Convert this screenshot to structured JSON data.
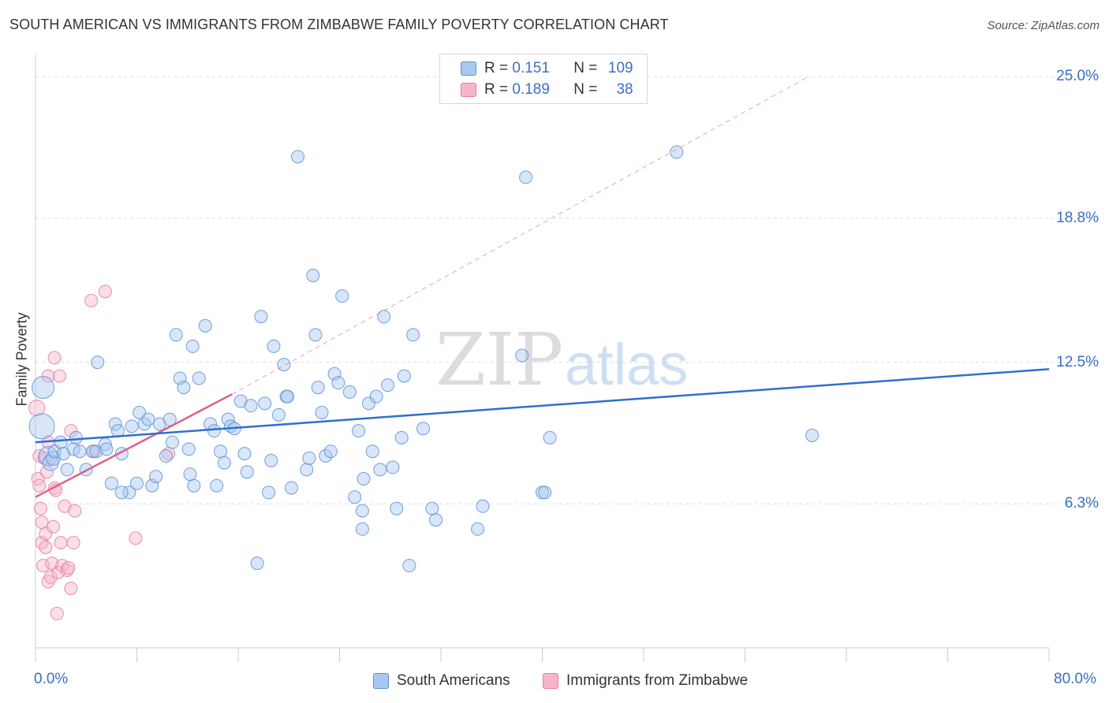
{
  "title": "SOUTH AMERICAN VS IMMIGRANTS FROM ZIMBABWE FAMILY POVERTY CORRELATION CHART",
  "source": "Source: ZipAtlas.com",
  "watermark": "ZIPatlas",
  "legend_top": {
    "rows": [
      {
        "r_label": "R =",
        "r_value": "0.151",
        "n_label": "N =",
        "n_value": "109"
      },
      {
        "r_label": "R =",
        "r_value": "0.189",
        "n_label": "N =",
        "n_value": "38"
      }
    ]
  },
  "legend_bottom": {
    "items": [
      "South Americans",
      "Immigrants from Zimbabwe"
    ]
  },
  "colors": {
    "blue_fill": "#a9c8f0",
    "blue_stroke": "#5b8fd6",
    "blue_line": "#2f6fcf",
    "pink_fill": "#f7b5cb",
    "pink_stroke": "#e8799e",
    "pink_line": "#e0608a",
    "grid": "#dddddd",
    "tick_text": "#3a6fc4"
  },
  "chart_data": {
    "type": "scatter",
    "title": "SOUTH AMERICAN VS IMMIGRANTS FROM ZIMBABWE FAMILY POVERTY CORRELATION CHART",
    "xlabel": "",
    "ylabel": "Family Poverty",
    "xlim": [
      0,
      80
    ],
    "ylim": [
      0,
      25.6
    ],
    "x_tick_labels": [
      "0.0%",
      "80.0%"
    ],
    "y_ticks": [
      6.3,
      12.5,
      18.8,
      25.0
    ],
    "y_tick_labels": [
      "6.3%",
      "12.5%",
      "18.8%",
      "25.0%"
    ],
    "grid": "horizontal dashed",
    "legend": "top-center",
    "series": [
      {
        "name": "South Americans",
        "R": 0.151,
        "N": 109,
        "trend": {
          "x": [
            0,
            80
          ],
          "y": [
            9.0,
            12.2
          ]
        },
        "points": [
          [
            0.5,
            9.7,
            16
          ],
          [
            0.6,
            11.4,
            14
          ],
          [
            1,
            8.4,
            12
          ],
          [
            1.2,
            8.1,
            10
          ],
          [
            1.4,
            8.3,
            9
          ],
          [
            1.5,
            8.6,
            8
          ],
          [
            2,
            9.0,
            8
          ],
          [
            2.2,
            8.5,
            8
          ],
          [
            2.5,
            7.8,
            8
          ],
          [
            3,
            8.7,
            8
          ],
          [
            3.2,
            9.2,
            8
          ],
          [
            3.5,
            8.6,
            8
          ],
          [
            4,
            7.8,
            8
          ],
          [
            4.5,
            8.6,
            8
          ],
          [
            4.8,
            8.6,
            8
          ],
          [
            4.9,
            12.5,
            8
          ],
          [
            5.5,
            8.9,
            8
          ],
          [
            5.6,
            8.7,
            8
          ],
          [
            6,
            7.2,
            8
          ],
          [
            6.3,
            9.8,
            8
          ],
          [
            6.5,
            9.5,
            8
          ],
          [
            6.8,
            8.5,
            8
          ],
          [
            7.4,
            6.8,
            8
          ],
          [
            7.6,
            9.7,
            8
          ],
          [
            8,
            7.2,
            8
          ],
          [
            8.2,
            10.3,
            8
          ],
          [
            8.6,
            9.8,
            8
          ],
          [
            8.9,
            10.0,
            8
          ],
          [
            9.2,
            7.1,
            8
          ],
          [
            9.5,
            7.5,
            8
          ],
          [
            9.8,
            9.8,
            8
          ],
          [
            10.3,
            8.4,
            8
          ],
          [
            10.6,
            10.0,
            8
          ],
          [
            10.8,
            9.0,
            8
          ],
          [
            11.1,
            13.7,
            8
          ],
          [
            11.4,
            11.8,
            8
          ],
          [
            11.7,
            11.4,
            8
          ],
          [
            12.1,
            8.7,
            8
          ],
          [
            12.4,
            13.2,
            8
          ],
          [
            12.5,
            7.1,
            8
          ],
          [
            12.9,
            11.8,
            8
          ],
          [
            13.4,
            14.1,
            8
          ],
          [
            13.8,
            9.8,
            8
          ],
          [
            14.1,
            9.5,
            8
          ],
          [
            14.3,
            7.1,
            8
          ],
          [
            14.6,
            8.6,
            8
          ],
          [
            14.9,
            8.1,
            8
          ],
          [
            15.2,
            10.0,
            8
          ],
          [
            15.4,
            9.7,
            8
          ],
          [
            15.7,
            9.6,
            8
          ],
          [
            16.2,
            10.8,
            8
          ],
          [
            16.5,
            8.5,
            8
          ],
          [
            16.7,
            7.7,
            8
          ],
          [
            17.0,
            10.6,
            8
          ],
          [
            17.8,
            14.5,
            8
          ],
          [
            18.1,
            10.7,
            8
          ],
          [
            18.4,
            6.8,
            8
          ],
          [
            18.6,
            8.2,
            8
          ],
          [
            18.8,
            13.2,
            8
          ],
          [
            19.2,
            10.2,
            8
          ],
          [
            19.6,
            12.4,
            8
          ],
          [
            19.8,
            11.0,
            8
          ],
          [
            20.2,
            7.0,
            8
          ],
          [
            20.7,
            21.5,
            8
          ],
          [
            21.4,
            7.8,
            8
          ],
          [
            21.6,
            8.3,
            8
          ],
          [
            21.9,
            16.3,
            8
          ],
          [
            22.1,
            13.7,
            8
          ],
          [
            22.3,
            11.4,
            8
          ],
          [
            22.6,
            10.3,
            8
          ],
          [
            22.9,
            8.4,
            8
          ],
          [
            23.3,
            8.6,
            8
          ],
          [
            23.6,
            12.0,
            8
          ],
          [
            23.9,
            11.6,
            8
          ],
          [
            24.2,
            15.4,
            8
          ],
          [
            24.8,
            11.2,
            8
          ],
          [
            25.2,
            6.6,
            8
          ],
          [
            25.5,
            9.5,
            8
          ],
          [
            25.8,
            6.0,
            8
          ],
          [
            25.9,
            7.4,
            8
          ],
          [
            26.3,
            10.7,
            8
          ],
          [
            26.6,
            8.6,
            8
          ],
          [
            26.9,
            11.0,
            8
          ],
          [
            27.2,
            7.8,
            8
          ],
          [
            27.5,
            14.5,
            8
          ],
          [
            27.8,
            11.5,
            8
          ],
          [
            28.2,
            7.9,
            8
          ],
          [
            28.5,
            6.1,
            8
          ],
          [
            28.9,
            9.2,
            8
          ],
          [
            29.1,
            11.9,
            8
          ],
          [
            29.5,
            3.6,
            8
          ],
          [
            29.8,
            13.7,
            8
          ],
          [
            30.6,
            9.6,
            8
          ],
          [
            31.3,
            6.1,
            8
          ],
          [
            31.6,
            5.6,
            8
          ],
          [
            34.9,
            5.2,
            8
          ],
          [
            35.3,
            6.2,
            8
          ],
          [
            38.4,
            12.8,
            8
          ],
          [
            38.7,
            20.6,
            8
          ],
          [
            40.0,
            6.8,
            8
          ],
          [
            40.2,
            6.8,
            8
          ],
          [
            40.6,
            9.2,
            8
          ],
          [
            50.6,
            21.7,
            8
          ],
          [
            61.3,
            9.3,
            8
          ],
          [
            17.5,
            3.7,
            8
          ],
          [
            25.8,
            5.2,
            8
          ],
          [
            19.9,
            11.0,
            8
          ],
          [
            6.8,
            6.8,
            8
          ],
          [
            12.2,
            7.6,
            8
          ]
        ]
      },
      {
        "name": "Immigrants from Zimbabwe",
        "R": 0.189,
        "N": 38,
        "trend": {
          "x": [
            0,
            15.5
          ],
          "y": [
            6.6,
            11.1
          ]
        },
        "trend_extension": {
          "x": [
            15.5,
            61
          ],
          "y": [
            11.1,
            25.0
          ]
        },
        "points": [
          [
            0.1,
            10.5,
            10
          ],
          [
            0.2,
            7.4,
            8
          ],
          [
            0.3,
            7.1,
            8
          ],
          [
            0.3,
            8.4,
            8
          ],
          [
            0.4,
            6.1,
            8
          ],
          [
            0.5,
            5.5,
            8
          ],
          [
            0.5,
            4.6,
            8
          ],
          [
            0.6,
            3.6,
            8
          ],
          [
            0.7,
            8.3,
            8
          ],
          [
            0.8,
            5.0,
            8
          ],
          [
            0.8,
            4.4,
            8
          ],
          [
            0.9,
            7.7,
            8
          ],
          [
            1.0,
            11.9,
            8
          ],
          [
            1.0,
            2.9,
            8
          ],
          [
            1.2,
            3.1,
            8
          ],
          [
            1.3,
            3.7,
            8
          ],
          [
            1.4,
            5.3,
            8
          ],
          [
            1.5,
            7.0,
            8
          ],
          [
            1.5,
            12.7,
            8
          ],
          [
            1.6,
            6.9,
            8
          ],
          [
            1.7,
            1.5,
            8
          ],
          [
            1.8,
            3.3,
            8
          ],
          [
            1.9,
            11.9,
            8
          ],
          [
            2.0,
            4.6,
            8
          ],
          [
            2.1,
            3.6,
            8
          ],
          [
            2.3,
            6.2,
            8
          ],
          [
            2.5,
            3.4,
            8
          ],
          [
            2.6,
            3.5,
            8
          ],
          [
            2.8,
            2.6,
            8
          ],
          [
            2.8,
            9.5,
            8
          ],
          [
            3.0,
            4.6,
            8
          ],
          [
            3.1,
            6.0,
            8
          ],
          [
            4.4,
            15.2,
            8
          ],
          [
            4.6,
            8.6,
            8
          ],
          [
            5.5,
            15.6,
            8
          ],
          [
            7.9,
            4.8,
            8
          ],
          [
            10.5,
            8.5,
            8
          ],
          [
            1.0,
            9.0,
            8
          ]
        ]
      }
    ]
  }
}
